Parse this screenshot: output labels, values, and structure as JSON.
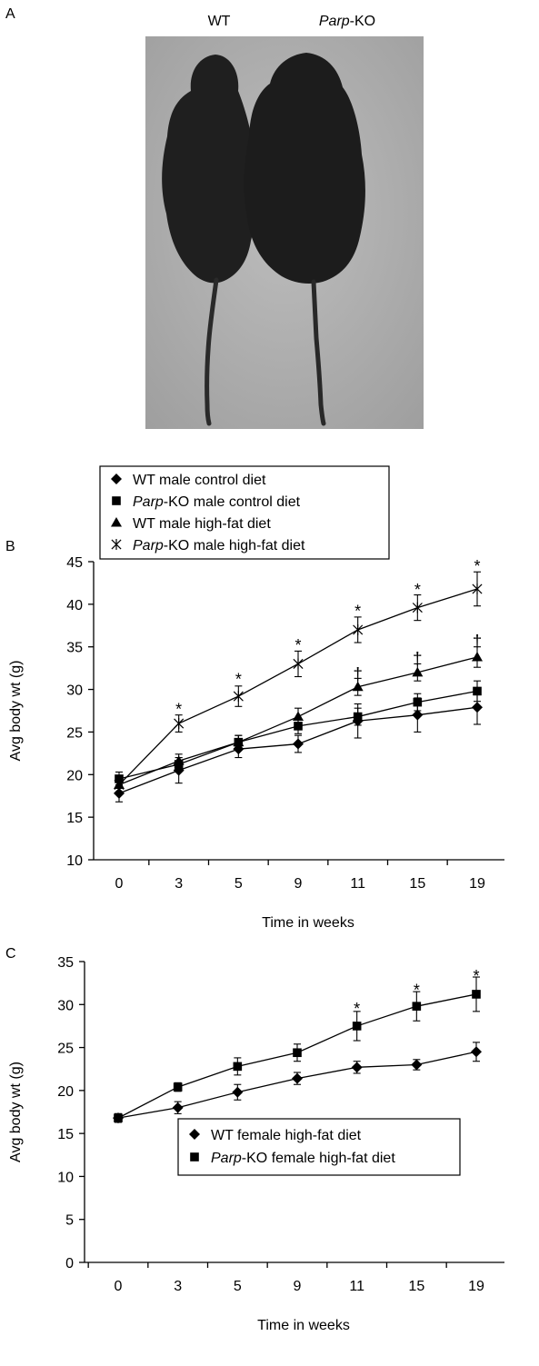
{
  "panel_a": {
    "label": "A",
    "left_label": "WT",
    "right_label_italic": "Parp",
    "right_label_rest": "-KO"
  },
  "chart_data": [
    {
      "panel": "B",
      "type": "line",
      "categories": [
        "0",
        "3",
        "5",
        "9",
        "11",
        "15",
        "19"
      ],
      "xlabel": "Time in weeks",
      "ylabel": "Avg body wt (g)",
      "ylim": [
        10,
        45
      ],
      "yticks": [
        10,
        15,
        20,
        25,
        30,
        35,
        40,
        45
      ],
      "legend_position": "top-left",
      "series": [
        {
          "name": "WT male control diet",
          "name_italic": "",
          "name_rest": "WT male control diet",
          "marker": "diamond",
          "values": [
            17.8,
            20.5,
            23.0,
            23.6,
            26.3,
            27.0,
            27.9
          ],
          "errors": [
            1.0,
            1.5,
            1.0,
            1.0,
            2.0,
            2.0,
            2.0
          ]
        },
        {
          "name": "Parp-KO male control diet",
          "name_italic": "Parp",
          "name_rest": "-KO male control diet",
          "marker": "square",
          "values": [
            19.5,
            21.2,
            23.8,
            25.7,
            26.8,
            28.5,
            29.8
          ],
          "errors": [
            0.8,
            0.8,
            0.8,
            0.9,
            1.0,
            1.0,
            1.2
          ]
        },
        {
          "name": "WT male high-fat diet",
          "name_italic": "",
          "name_rest": "WT male high-fat diet",
          "marker": "triangle",
          "values": [
            18.8,
            21.6,
            23.8,
            26.8,
            30.3,
            32.0,
            33.8
          ],
          "errors": [
            0.8,
            0.8,
            0.8,
            1.0,
            1.0,
            1.0,
            1.2
          ]
        },
        {
          "name": "Parp-KO male high-fat diet",
          "name_italic": "Parp",
          "name_rest": "-KO male high-fat diet",
          "marker": "star",
          "values": [
            18.8,
            26.0,
            29.2,
            33.0,
            37.0,
            39.6,
            41.8
          ],
          "errors": [
            0.8,
            1.0,
            1.2,
            1.5,
            1.5,
            1.5,
            2.0
          ]
        }
      ],
      "annotations": [
        {
          "text": "*",
          "x": "3",
          "y": 28.0
        },
        {
          "text": "*",
          "x": "5",
          "y": 31.5
        },
        {
          "text": "*",
          "x": "9",
          "y": 35.5
        },
        {
          "text": "*",
          "x": "11",
          "y": 39.5
        },
        {
          "text": "*",
          "x": "15",
          "y": 42.0
        },
        {
          "text": "*",
          "x": "19",
          "y": 44.8
        },
        {
          "text": "†",
          "x": "11",
          "y": 32.0
        },
        {
          "text": "†",
          "x": "15",
          "y": 33.8
        },
        {
          "text": "†",
          "x": "19",
          "y": 35.8
        }
      ]
    },
    {
      "panel": "C",
      "type": "line",
      "categories": [
        "0",
        "3",
        "5",
        "9",
        "11",
        "15",
        "19"
      ],
      "xlabel": "Time in weeks",
      "ylabel": "Avg body wt (g)",
      "ylim": [
        0,
        35
      ],
      "yticks": [
        0,
        5,
        10,
        15,
        20,
        25,
        30,
        35
      ],
      "legend_position": "bottom-right",
      "series": [
        {
          "name": "WT female high-fat diet",
          "name_italic": "",
          "name_rest": "WT female high-fat diet",
          "marker": "diamond",
          "values": [
            16.8,
            18.0,
            19.8,
            21.4,
            22.7,
            23.0,
            24.5
          ],
          "errors": [
            0.5,
            0.7,
            0.9,
            0.7,
            0.7,
            0.6,
            1.1
          ]
        },
        {
          "name": "Parp-KO female high-fat diet",
          "name_italic": "Parp",
          "name_rest": "-KO female high-fat diet",
          "marker": "square",
          "values": [
            16.8,
            20.4,
            22.8,
            24.4,
            27.5,
            29.8,
            31.2
          ],
          "errors": [
            0.5,
            0.5,
            1.0,
            1.0,
            1.7,
            1.7,
            2.0
          ]
        }
      ],
      "annotations": [
        {
          "text": "*",
          "x": "11",
          "y": 29.8
        },
        {
          "text": "*",
          "x": "15",
          "y": 32.0
        },
        {
          "text": "*",
          "x": "19",
          "y": 33.6
        }
      ]
    }
  ]
}
